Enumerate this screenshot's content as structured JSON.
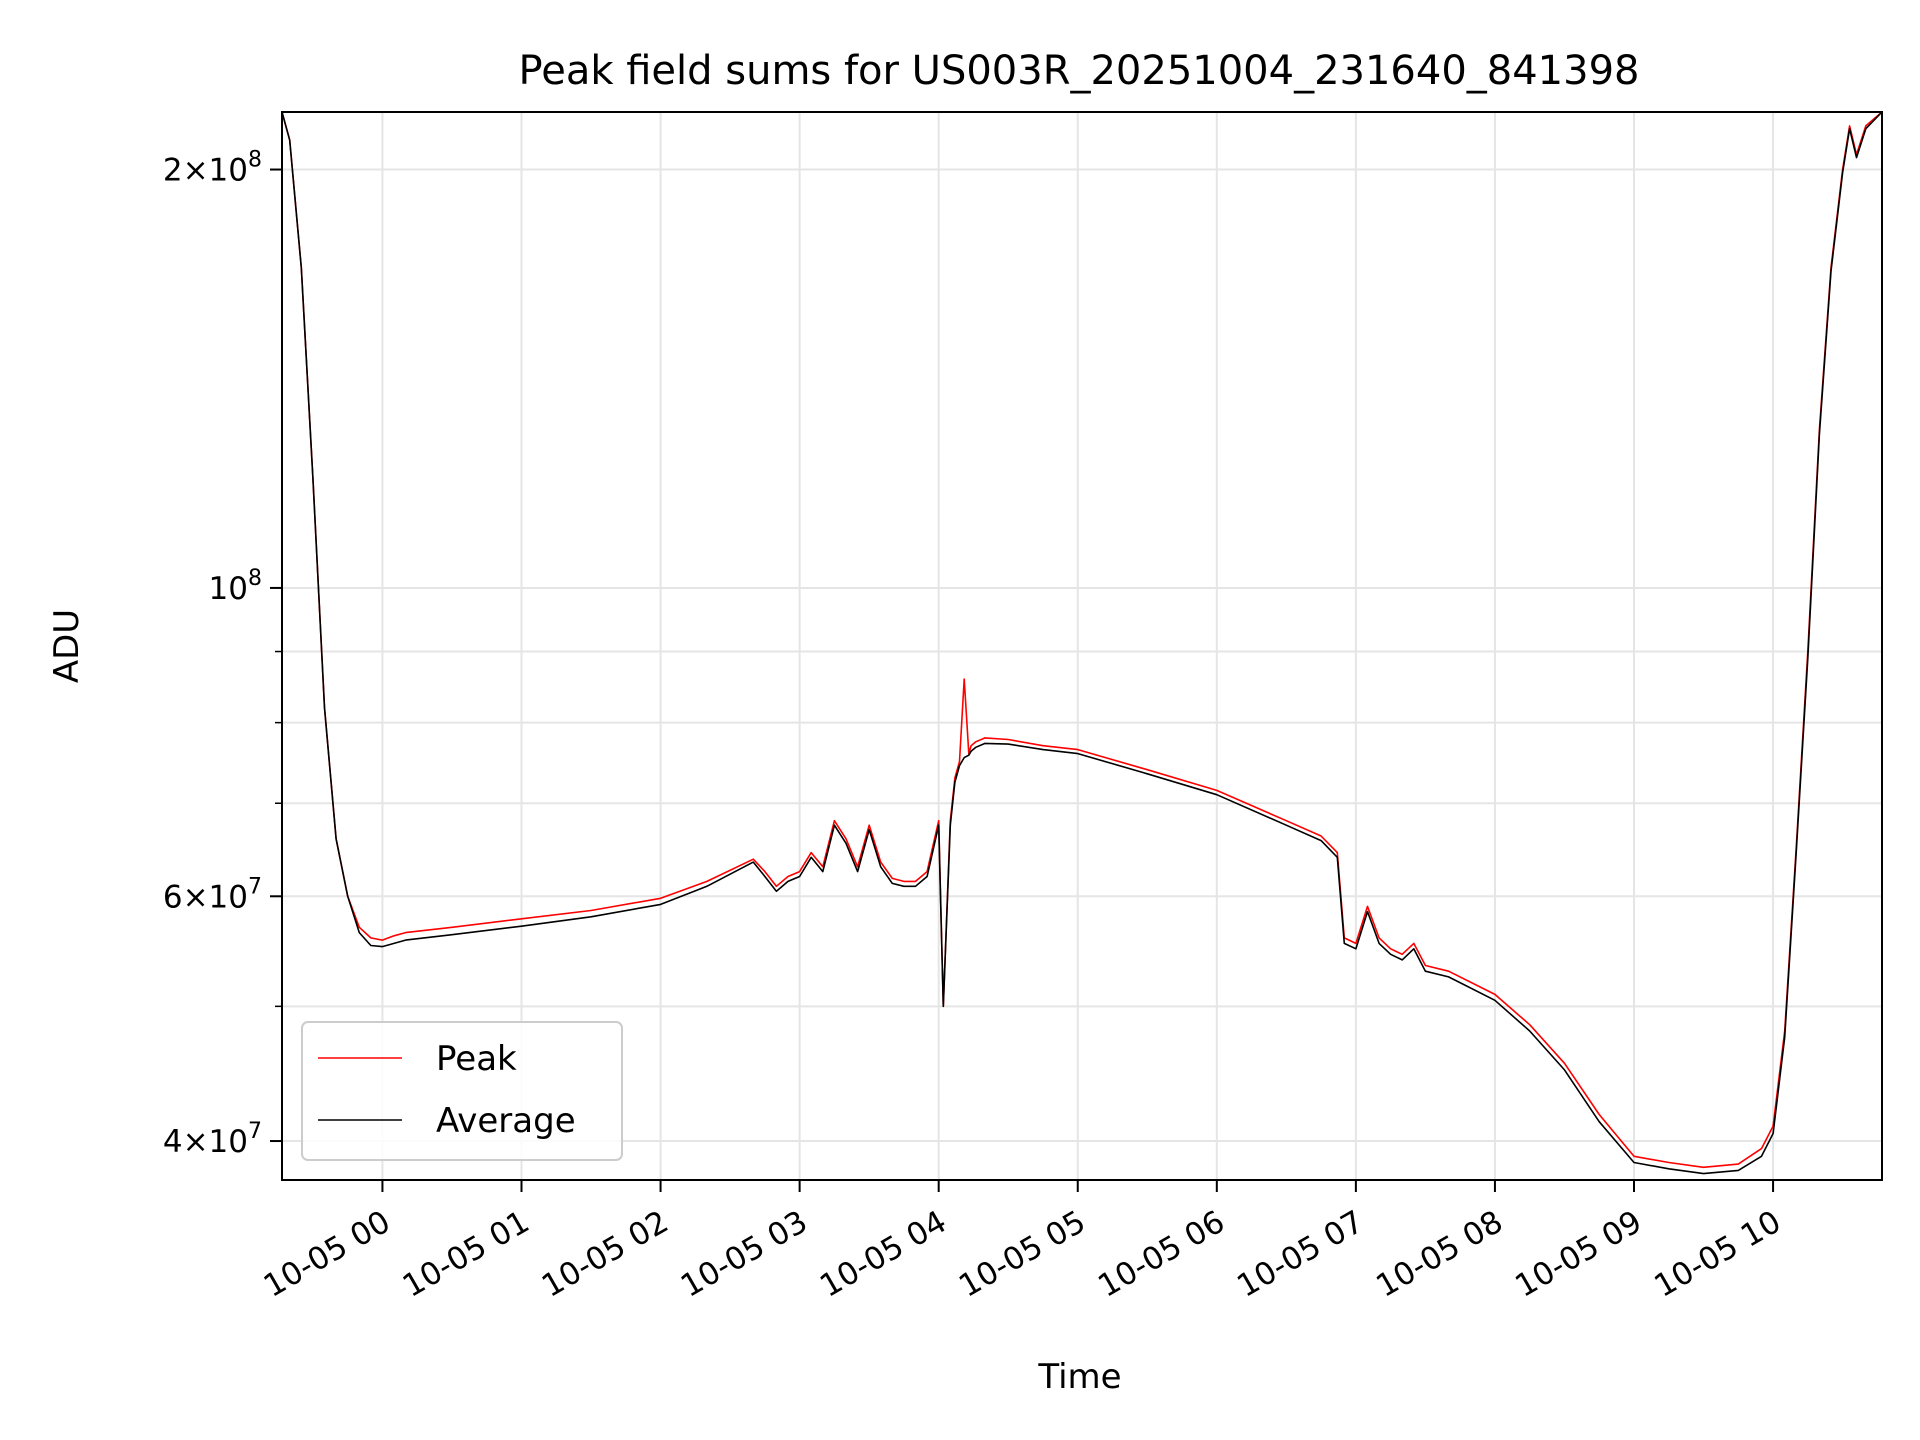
{
  "chart_data": {
    "type": "line",
    "title": "Peak field sums for US003R_20251004_231640_841398",
    "xlabel": "Time",
    "ylabel": "ADU",
    "y_scale": "log",
    "ylim": [
      37500000,
      220000000
    ],
    "xlim": [
      "2025-10-04 23:16:40",
      "2025-10-05 10:47:00"
    ],
    "grid": true,
    "legend_position": "lower-left",
    "x_ticks": [
      "10-05 00",
      "10-05 01",
      "10-05 02",
      "10-05 03",
      "10-05 04",
      "10-05 05",
      "10-05 06",
      "10-05 07",
      "10-05 08",
      "10-05 09",
      "10-05 10"
    ],
    "x_tick_times": [
      "2025-10-05 00:00",
      "2025-10-05 01:00",
      "2025-10-05 02:00",
      "2025-10-05 03:00",
      "2025-10-05 04:00",
      "2025-10-05 05:00",
      "2025-10-05 06:00",
      "2025-10-05 07:00",
      "2025-10-05 08:00",
      "2025-10-05 09:00",
      "2025-10-05 10:00"
    ],
    "y_major_ticks": [
      {
        "value": 40000000,
        "mantissa": "4",
        "exponent": "7"
      },
      {
        "value": 60000000,
        "mantissa": "6",
        "exponent": "7"
      },
      {
        "value": 100000000,
        "mantissa": "",
        "exponent": "8"
      },
      {
        "value": 200000000,
        "mantissa": "2",
        "exponent": "8"
      }
    ],
    "y_minor_ticks": [
      50000000,
      70000000,
      80000000,
      90000000
    ],
    "series": [
      {
        "name": "Peak",
        "color": "#ff0000",
        "x": [
          "2025-10-04 23:16:40",
          "2025-10-04 23:20",
          "2025-10-04 23:25",
          "2025-10-04 23:30",
          "2025-10-04 23:35",
          "2025-10-04 23:40",
          "2025-10-04 23:45",
          "2025-10-04 23:50",
          "2025-10-04 23:55",
          "2025-10-05 00:00",
          "2025-10-05 00:05",
          "2025-10-05 00:10",
          "2025-10-05 00:30",
          "2025-10-05 01:00",
          "2025-10-05 01:30",
          "2025-10-05 02:00",
          "2025-10-05 02:20",
          "2025-10-05 02:40",
          "2025-10-05 02:45",
          "2025-10-05 02:50",
          "2025-10-05 02:55",
          "2025-10-05 03:00",
          "2025-10-05 03:05",
          "2025-10-05 03:10",
          "2025-10-05 03:15",
          "2025-10-05 03:20",
          "2025-10-05 03:25",
          "2025-10-05 03:30",
          "2025-10-05 03:35",
          "2025-10-05 03:40",
          "2025-10-05 03:45",
          "2025-10-05 03:50",
          "2025-10-05 03:55",
          "2025-10-05 04:00",
          "2025-10-05 04:02",
          "2025-10-05 04:05",
          "2025-10-05 04:07",
          "2025-10-05 04:09",
          "2025-10-05 04:11",
          "2025-10-05 04:13",
          "2025-10-05 04:14",
          "2025-10-05 04:16",
          "2025-10-05 04:20",
          "2025-10-05 04:30",
          "2025-10-05 04:45",
          "2025-10-05 05:00",
          "2025-10-05 05:30",
          "2025-10-05 06:00",
          "2025-10-05 06:30",
          "2025-10-05 06:45",
          "2025-10-05 06:52",
          "2025-10-05 06:55",
          "2025-10-05 07:00",
          "2025-10-05 07:05",
          "2025-10-05 07:10",
          "2025-10-05 07:15",
          "2025-10-05 07:20",
          "2025-10-05 07:25",
          "2025-10-05 07:30",
          "2025-10-05 07:40",
          "2025-10-05 08:00",
          "2025-10-05 08:15",
          "2025-10-05 08:30",
          "2025-10-05 08:45",
          "2025-10-05 09:00",
          "2025-10-05 09:15",
          "2025-10-05 09:30",
          "2025-10-05 09:45",
          "2025-10-05 09:55",
          "2025-10-05 10:00",
          "2025-10-05 10:05",
          "2025-10-05 10:10",
          "2025-10-05 10:15",
          "2025-10-05 10:20",
          "2025-10-05 10:25",
          "2025-10-05 10:30",
          "2025-10-05 10:33",
          "2025-10-05 10:36",
          "2025-10-05 10:40",
          "2025-10-05 10:47"
        ],
        "y": [
          220000000,
          210000000,
          170000000,
          120000000,
          82000000,
          66000000,
          60000000,
          57000000,
          56000000,
          55800000,
          56200000,
          56500000,
          57000000,
          57800000,
          58600000,
          59800000,
          61500000,
          63800000,
          62500000,
          61000000,
          62000000,
          62500000,
          64500000,
          63000000,
          68000000,
          66000000,
          63000000,
          67500000,
          63500000,
          61800000,
          61500000,
          61500000,
          62500000,
          68000000,
          50000000,
          68000000,
          73000000,
          75000000,
          86000000,
          76000000,
          77000000,
          77500000,
          78000000,
          77800000,
          77000000,
          76500000,
          74000000,
          71500000,
          68000000,
          66300000,
          64500000,
          56000000,
          55500000,
          59000000,
          56000000,
          55000000,
          54500000,
          55500000,
          53500000,
          53000000,
          51000000,
          48500000,
          45500000,
          41800000,
          39000000,
          38600000,
          38300000,
          38500000,
          39500000,
          41000000,
          48000000,
          65000000,
          90000000,
          130000000,
          170000000,
          200000000,
          215000000,
          205000000,
          215000000,
          220000000
        ]
      },
      {
        "name": "Average",
        "color": "#000000",
        "x": [
          "2025-10-04 23:16:40",
          "2025-10-04 23:20",
          "2025-10-04 23:25",
          "2025-10-04 23:30",
          "2025-10-04 23:35",
          "2025-10-04 23:40",
          "2025-10-04 23:45",
          "2025-10-04 23:50",
          "2025-10-04 23:55",
          "2025-10-05 00:00",
          "2025-10-05 00:05",
          "2025-10-05 00:10",
          "2025-10-05 00:30",
          "2025-10-05 01:00",
          "2025-10-05 01:30",
          "2025-10-05 02:00",
          "2025-10-05 02:20",
          "2025-10-05 02:40",
          "2025-10-05 02:45",
          "2025-10-05 02:50",
          "2025-10-05 02:55",
          "2025-10-05 03:00",
          "2025-10-05 03:05",
          "2025-10-05 03:10",
          "2025-10-05 03:15",
          "2025-10-05 03:20",
          "2025-10-05 03:25",
          "2025-10-05 03:30",
          "2025-10-05 03:35",
          "2025-10-05 03:40",
          "2025-10-05 03:45",
          "2025-10-05 03:50",
          "2025-10-05 03:55",
          "2025-10-05 04:00",
          "2025-10-05 04:02",
          "2025-10-05 04:05",
          "2025-10-05 04:07",
          "2025-10-05 04:09",
          "2025-10-05 04:11",
          "2025-10-05 04:13",
          "2025-10-05 04:14",
          "2025-10-05 04:16",
          "2025-10-05 04:20",
          "2025-10-05 04:30",
          "2025-10-05 04:45",
          "2025-10-05 05:00",
          "2025-10-05 05:30",
          "2025-10-05 06:00",
          "2025-10-05 06:30",
          "2025-10-05 06:45",
          "2025-10-05 06:52",
          "2025-10-05 06:55",
          "2025-10-05 07:00",
          "2025-10-05 07:05",
          "2025-10-05 07:10",
          "2025-10-05 07:15",
          "2025-10-05 07:20",
          "2025-10-05 07:25",
          "2025-10-05 07:30",
          "2025-10-05 07:40",
          "2025-10-05 08:00",
          "2025-10-05 08:15",
          "2025-10-05 08:30",
          "2025-10-05 08:45",
          "2025-10-05 09:00",
          "2025-10-05 09:15",
          "2025-10-05 09:30",
          "2025-10-05 09:45",
          "2025-10-05 09:55",
          "2025-10-05 10:00",
          "2025-10-05 10:05",
          "2025-10-05 10:10",
          "2025-10-05 10:15",
          "2025-10-05 10:20",
          "2025-10-05 10:25",
          "2025-10-05 10:30",
          "2025-10-05 10:33",
          "2025-10-05 10:36",
          "2025-10-05 10:40",
          "2025-10-05 10:47"
        ],
        "y": [
          220000000,
          210000000,
          170000000,
          120000000,
          82000000,
          66000000,
          60000000,
          56500000,
          55300000,
          55200000,
          55500000,
          55800000,
          56300000,
          57100000,
          58000000,
          59200000,
          61000000,
          63500000,
          62000000,
          60500000,
          61500000,
          62000000,
          64000000,
          62500000,
          67500000,
          65500000,
          62500000,
          67000000,
          63000000,
          61300000,
          61000000,
          61000000,
          62000000,
          67500000,
          50000000,
          67500000,
          72500000,
          74500000,
          75500000,
          75800000,
          76300000,
          76800000,
          77300000,
          77200000,
          76500000,
          76000000,
          73500000,
          71000000,
          67500000,
          65800000,
          64000000,
          55500000,
          55000000,
          58500000,
          55500000,
          54500000,
          54000000,
          55000000,
          53000000,
          52500000,
          50500000,
          48000000,
          45000000,
          41300000,
          38600000,
          38200000,
          37900000,
          38100000,
          39000000,
          40500000,
          47500000,
          64500000,
          89000000,
          129000000,
          169000000,
          199000000,
          214000000,
          204000000,
          214000000,
          220000000
        ]
      }
    ]
  }
}
